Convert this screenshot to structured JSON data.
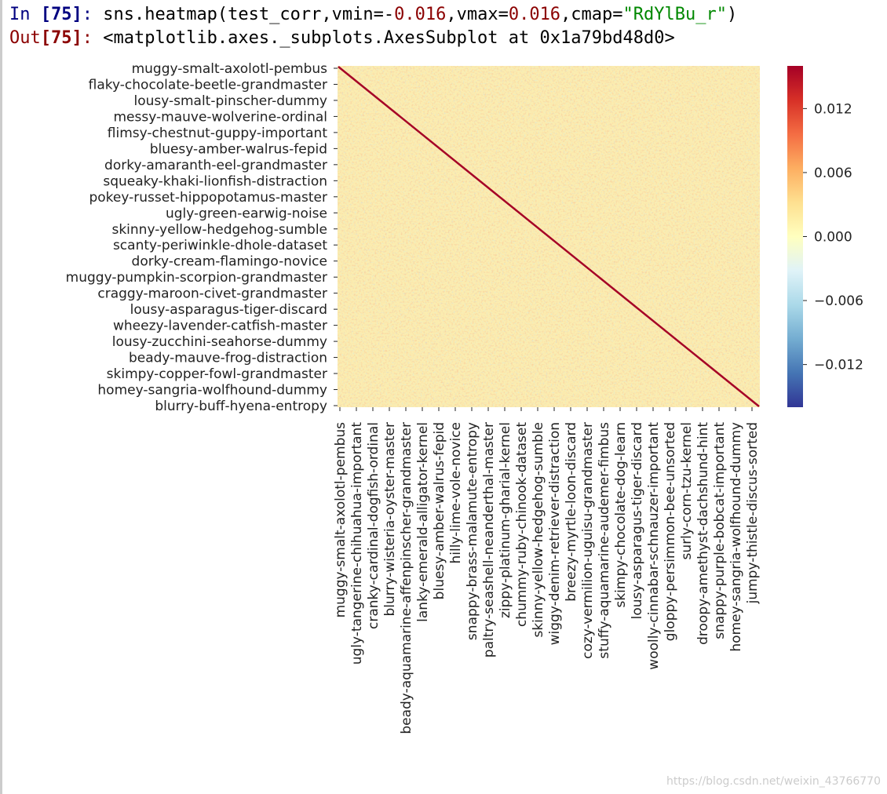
{
  "input_prompt": {
    "label": "In ",
    "number": "[75]",
    "colon": ":"
  },
  "code": [
    {
      "text": "sns.heatmap(test_corr,vmin=-",
      "kind": "plain"
    },
    {
      "text": "0.016",
      "kind": "number"
    },
    {
      "text": ",vmax=",
      "kind": "plain"
    },
    {
      "text": "0.016",
      "kind": "number"
    },
    {
      "text": ",cmap=",
      "kind": "plain"
    },
    {
      "text": "\"RdYlBu_r\"",
      "kind": "string"
    },
    {
      "text": ")",
      "kind": "plain"
    }
  ],
  "output_prompt": {
    "label": "Out",
    "number": "[75]",
    "colon": ":"
  },
  "output_text": "<matplotlib.axes._subplots.AxesSubplot at 0x1a79bd48d0>",
  "chart_data": {
    "type": "heatmap",
    "row_labels": [
      "muggy-smalt-axolotl-pembus",
      "flaky-chocolate-beetle-grandmaster",
      "lousy-smalt-pinscher-dummy",
      "messy-mauve-wolverine-ordinal",
      "flimsy-chestnut-guppy-important",
      "bluesy-amber-walrus-fepid",
      "dorky-amaranth-eel-grandmaster",
      "squeaky-khaki-lionfish-distraction",
      "pokey-russet-hippopotamus-master",
      "ugly-green-earwig-noise",
      "skinny-yellow-hedgehog-sumble",
      "scanty-periwinkle-dhole-dataset",
      "dorky-cream-flamingo-novice",
      "muggy-pumpkin-scorpion-grandmaster",
      "craggy-maroon-civet-grandmaster",
      "lousy-asparagus-tiger-discard",
      "wheezy-lavender-catfish-master",
      "lousy-zucchini-seahorse-dummy",
      "beady-mauve-frog-distraction",
      "skimpy-copper-fowl-grandmaster",
      "homey-sangria-wolfhound-dummy",
      "blurry-buff-hyena-entropy"
    ],
    "col_labels": [
      "muggy-smalt-axolotl-pembus",
      "ugly-tangerine-chihuahua-important",
      "cranky-cardinal-dogfish-ordinal",
      "blurry-wisteria-oyster-master",
      "beady-aquamarine-affenpinscher-grandmaster",
      "lanky-emerald-alligator-kernel",
      "bluesy-amber-walrus-fepid",
      "hilly-lime-vole-novice",
      "snappy-brass-malamute-entropy",
      "paltry-seashell-neanderthal-master",
      "zippy-platinum-gharial-kernel",
      "chummy-ruby-chinook-dataset",
      "skinny-yellow-hedgehog-sumble",
      "wiggy-denim-retriever-distraction",
      "breezy-myrtle-loon-discard",
      "cozy-vermilion-uguisu-grandmaster",
      "stuffy-aquamarine-audemer-fimbus",
      "skimpy-chocolate-dog-learn",
      "lousy-asparagus-tiger-discard",
      "woolly-cinnabar-schnauzer-important",
      "gloppy-persimmon-bee-unsorted",
      "surly-corn-tzu-kernel",
      "droopy-amethyst-dachshund-hint",
      "snappy-purple-bobcat-important",
      "homey-sangria-wolfhound-dummy",
      "jumpy-thistle-discus-sorted"
    ],
    "clim": [
      -0.016,
      0.016
    ],
    "colorbar_ticks": [
      {
        "value": 0.012,
        "label": "0.012"
      },
      {
        "value": 0.006,
        "label": "0.006"
      },
      {
        "value": 0,
        "label": "0.000"
      },
      {
        "value": -0.006,
        "label": "−0.006"
      },
      {
        "value": -0.012,
        "label": "−0.012"
      }
    ],
    "colormap": [
      "#313695",
      "#4575b4",
      "#74add1",
      "#abd9e9",
      "#e0f3f8",
      "#ffffbf",
      "#fee090",
      "#fdae61",
      "#f46d43",
      "#d73027",
      "#a50026"
    ]
  },
  "watermark": "https://blog.csdn.net/weixin_43766770"
}
